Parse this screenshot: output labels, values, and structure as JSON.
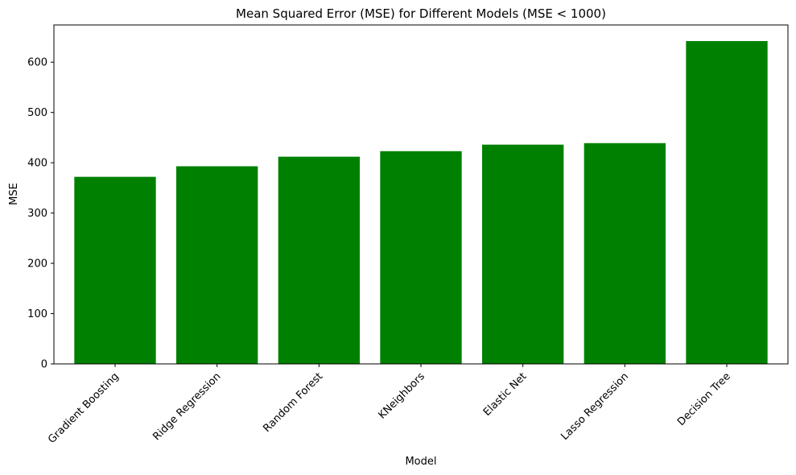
{
  "chart_data": {
    "type": "bar",
    "title": "Mean Squared Error (MSE) for Different Models (MSE < 1000)",
    "xlabel": "Model",
    "ylabel": "MSE",
    "categories": [
      "Gradient Boosting",
      "Ridge Regression",
      "Random Forest",
      "KNeighbors",
      "Elastic Net",
      "Lasso Regression",
      "Decision Tree"
    ],
    "values": [
      372,
      393,
      412,
      423,
      436,
      439,
      642
    ],
    "ylim": [
      0,
      674
    ],
    "yticks": [
      0,
      100,
      200,
      300,
      400,
      500,
      600
    ],
    "ytick_labels": [
      "0",
      "100",
      "200",
      "300",
      "400",
      "500",
      "600"
    ],
    "bar_color": "#008000",
    "grid": false,
    "legend": false
  }
}
